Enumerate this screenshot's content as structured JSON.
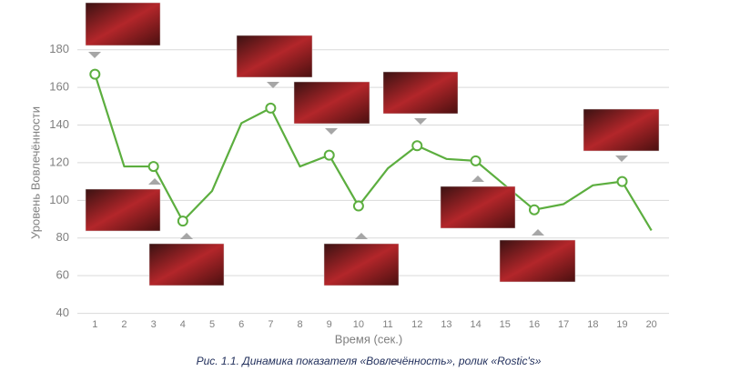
{
  "chart_data": {
    "type": "line",
    "caption": "Рис. 1.1. Динамика показателя «Вовлечённость», ролик «Rostic's»",
    "x_label": "Время (сек.)",
    "y_label": "Уровень Вовлечённости",
    "x": [
      1,
      2,
      3,
      4,
      5,
      6,
      7,
      8,
      9,
      10,
      11,
      12,
      13,
      14,
      15,
      16,
      17,
      18,
      19,
      20
    ],
    "xlim": [
      0.4,
      20.6
    ],
    "series": [
      {
        "name": "Вовлечённость",
        "color": "#5cae3f",
        "values": [
          167,
          118,
          118,
          89,
          105,
          141,
          149,
          118,
          124,
          97,
          117,
          129,
          122,
          121,
          108,
          95,
          98,
          108,
          110,
          84
        ]
      }
    ],
    "markers_at": [
      1,
      3,
      4,
      7,
      9,
      10,
      12,
      14,
      16,
      19
    ],
    "ylim": [
      34,
      190
    ],
    "yticks": [
      40,
      60,
      80,
      100,
      120,
      140,
      160,
      180
    ],
    "grid": true
  }
}
